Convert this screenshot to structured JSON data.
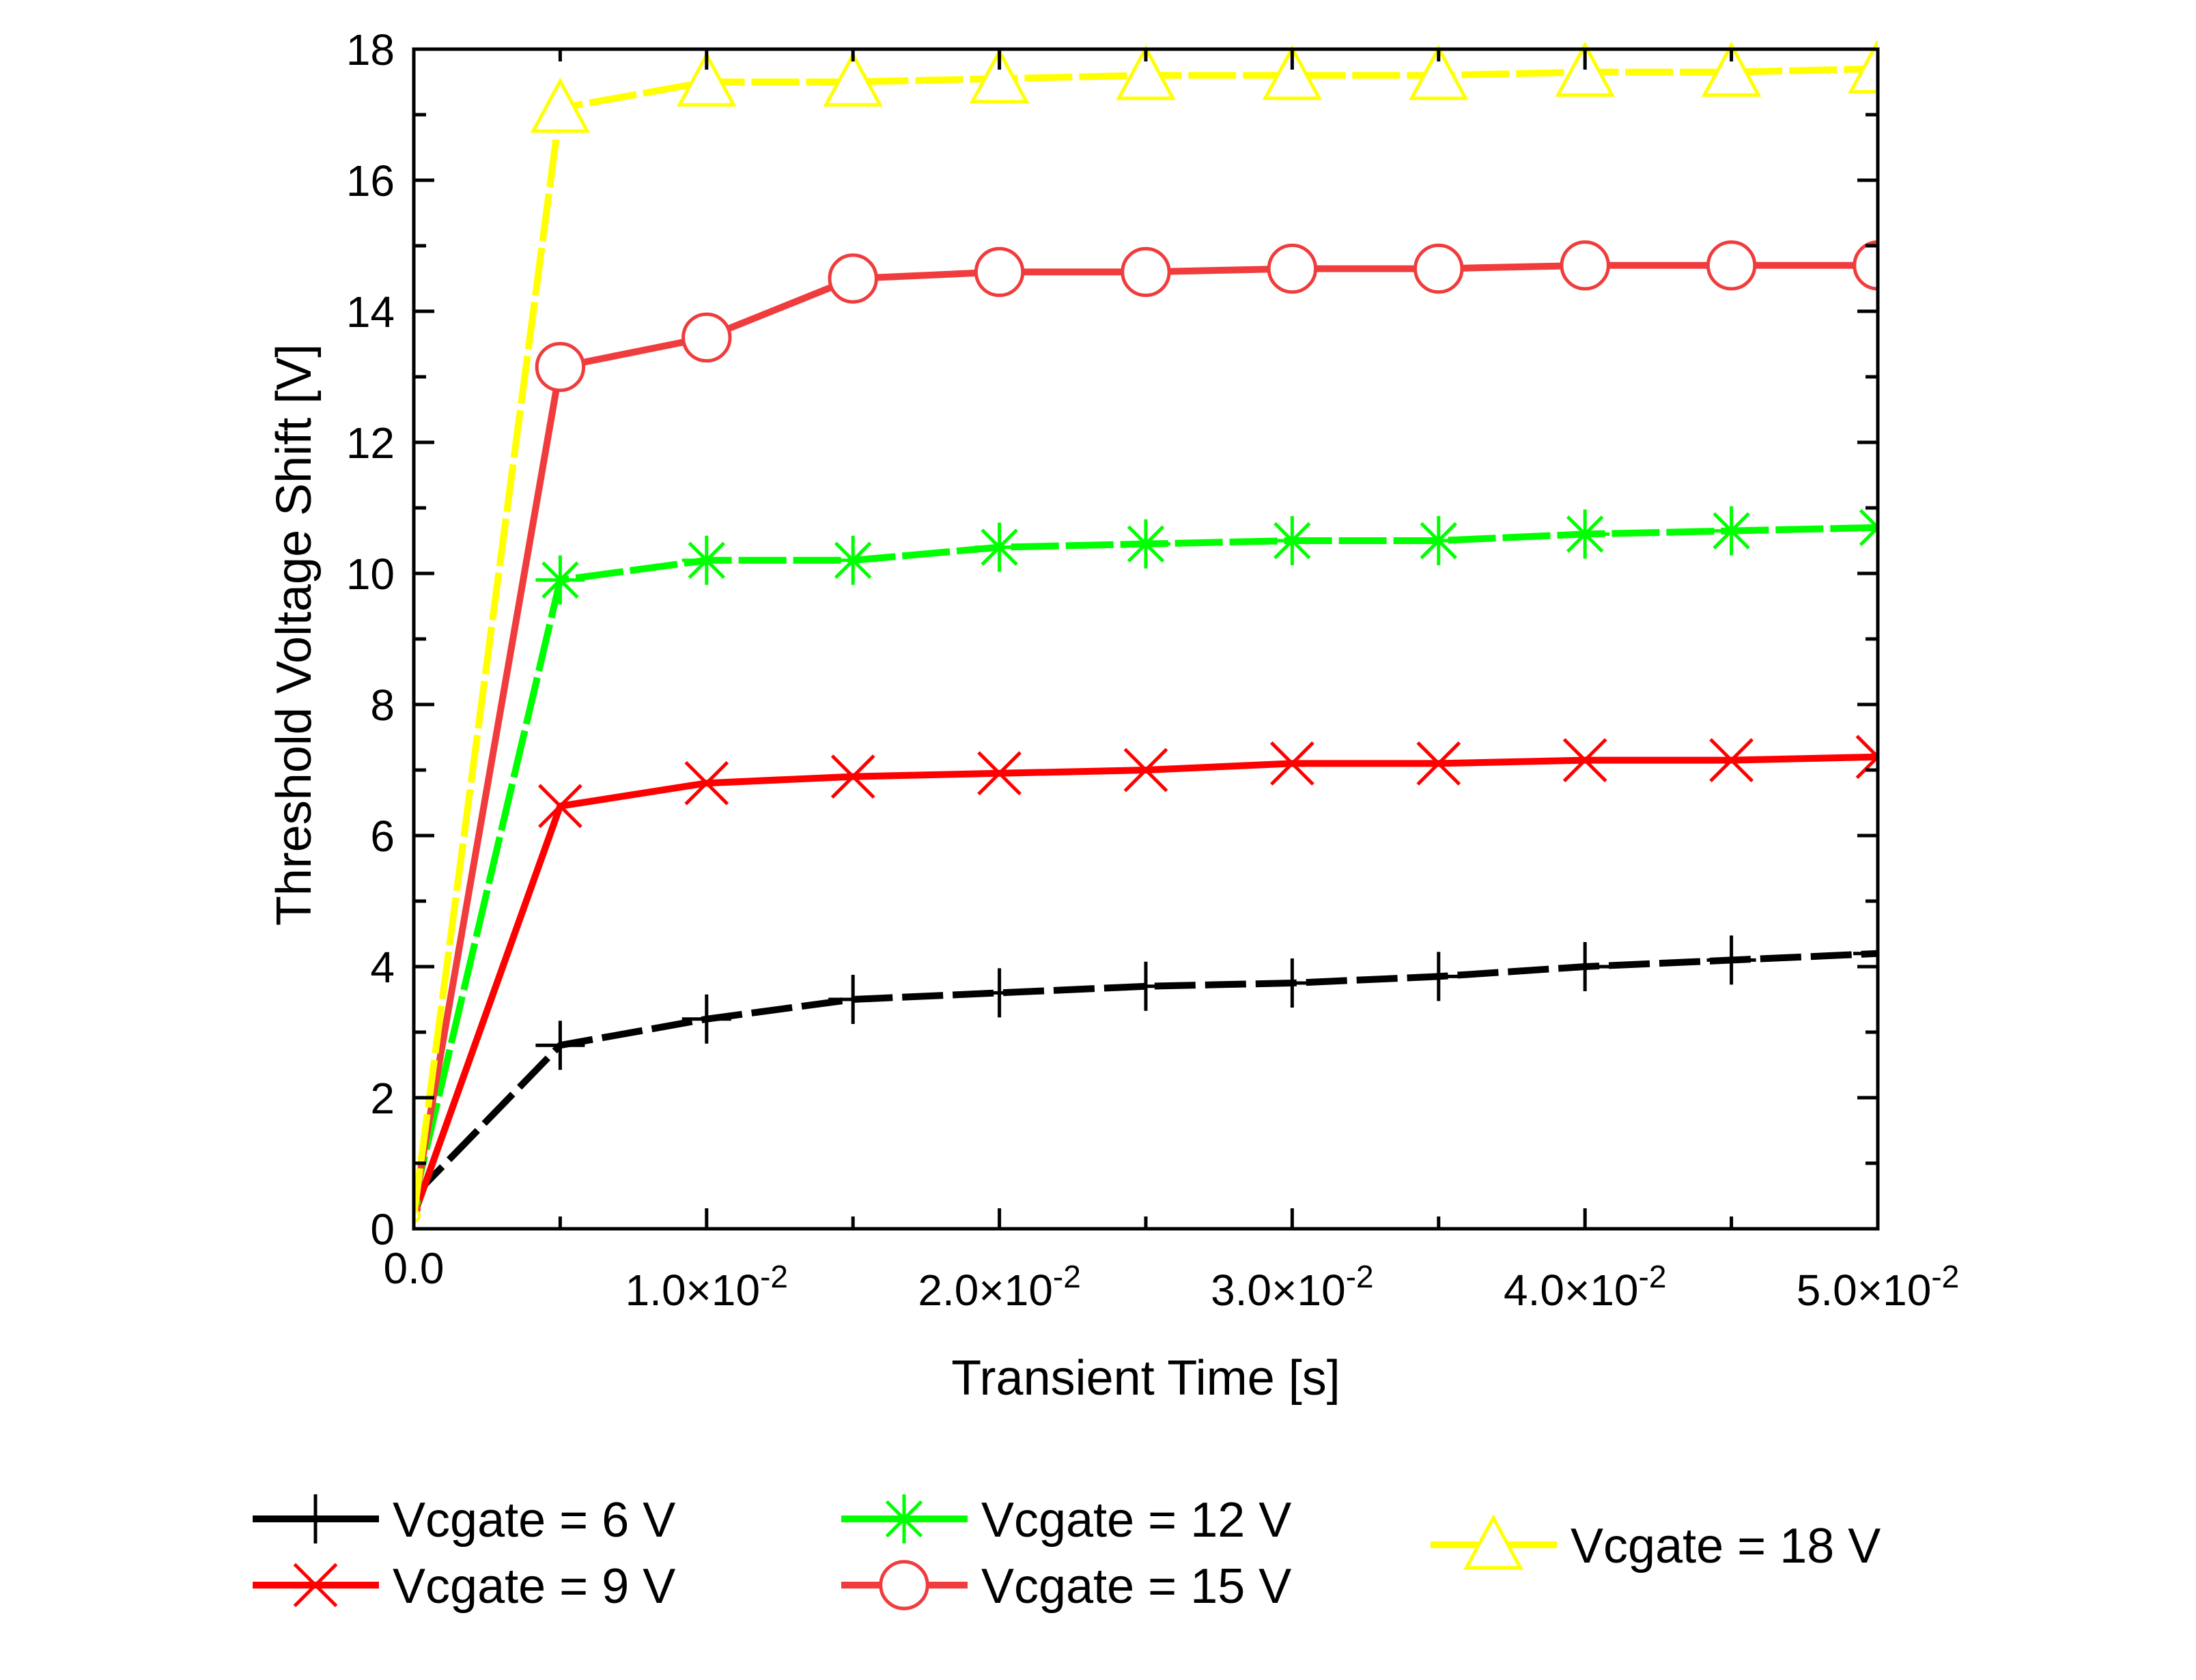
{
  "chart_data": {
    "type": "line",
    "xlabel": "Transient Time [s]",
    "ylabel": "Threshold Voltage Shift [V]",
    "xlim": [
      0,
      0.05
    ],
    "ylim": [
      0,
      18
    ],
    "grid": false,
    "legend_position": "bottom",
    "x_tick_labels": [
      {
        "value": 0,
        "mantissa": "0.0",
        "exponent": ""
      },
      {
        "value": 0.01,
        "mantissa": "1.0×10",
        "exponent": "-2"
      },
      {
        "value": 0.02,
        "mantissa": "2.0×10",
        "exponent": "-2"
      },
      {
        "value": 0.03,
        "mantissa": "3.0×10",
        "exponent": "-2"
      },
      {
        "value": 0.04,
        "mantissa": "4.0×10",
        "exponent": "-2"
      },
      {
        "value": 0.05,
        "mantissa": "5.0×10",
        "exponent": "-2"
      }
    ],
    "y_tick_labels": [
      "0",
      "2",
      "4",
      "6",
      "8",
      "10",
      "12",
      "14",
      "16",
      "18"
    ],
    "x": [
      0,
      0.005,
      0.01,
      0.015,
      0.02,
      0.025,
      0.03,
      0.035,
      0.04,
      0.045,
      0.05
    ],
    "series": [
      {
        "name": "Vcgate = 6 V",
        "color": "#000000",
        "marker": "plus",
        "values": [
          0.5,
          2.8,
          3.2,
          3.5,
          3.6,
          3.7,
          3.75,
          3.85,
          4.0,
          4.1,
          4.2
        ]
      },
      {
        "name": "Vcgate = 9 V",
        "color": "#ff0000",
        "marker": "cross",
        "values": [
          0.2,
          6.45,
          6.8,
          6.9,
          6.95,
          7.0,
          7.1,
          7.1,
          7.15,
          7.15,
          7.2
        ]
      },
      {
        "name": "Vcgate = 12 V",
        "color": "#00ff00",
        "marker": "asterisk",
        "values": [
          0.4,
          9.9,
          10.2,
          10.2,
          10.4,
          10.45,
          10.5,
          10.5,
          10.6,
          10.65,
          10.7
        ]
      },
      {
        "name": "Vcgate = 15 V",
        "color": "#f03c3c",
        "marker": "circle",
        "values": [
          0.3,
          13.15,
          13.6,
          14.5,
          14.6,
          14.6,
          14.65,
          14.65,
          14.7,
          14.7,
          14.7
        ]
      },
      {
        "name": "Vcgate = 18 V",
        "color": "#ffff00",
        "marker": "triangle",
        "values": [
          0.2,
          17.1,
          17.5,
          17.5,
          17.55,
          17.6,
          17.6,
          17.6,
          17.65,
          17.65,
          17.7
        ]
      }
    ]
  }
}
